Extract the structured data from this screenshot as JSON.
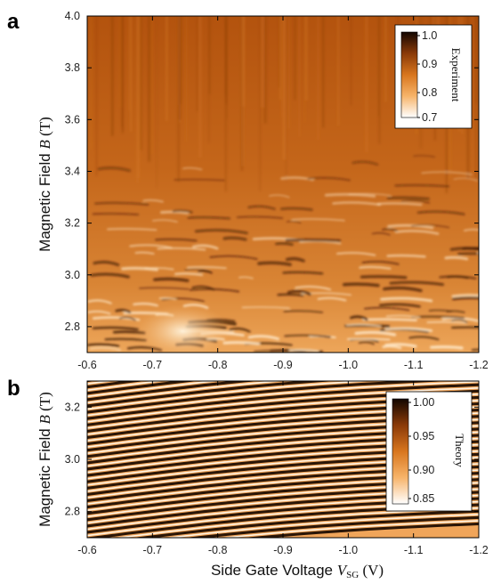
{
  "chart_data": [
    {
      "type": "heatmap",
      "panel_label": "a",
      "xlabel_parts": [
        "Side Gate Voltage ",
        "V",
        "SG",
        " (V)"
      ],
      "ylabel_parts": [
        "Magnetic Field ",
        "B",
        " (T)"
      ],
      "xlim": [
        -0.6,
        -1.2
      ],
      "ylim": [
        2.7,
        4.0
      ],
      "x_ticks": [
        "-0.6",
        "-0.7",
        "-0.8",
        "-0.9",
        "-1.0",
        "-1.1",
        "-1.2"
      ],
      "y_ticks": [
        "2.8",
        "3.0",
        "3.2",
        "3.4",
        "3.6",
        "3.8",
        "4.0"
      ],
      "colorbar": {
        "label": "Experiment",
        "range": [
          0.7,
          1.0
        ],
        "ticks": [
          "1.0",
          "0.9",
          "0.8",
          "0.7"
        ]
      }
    },
    {
      "type": "heatmap",
      "panel_label": "b",
      "xlabel_parts": [
        "Side Gate Voltage ",
        "V",
        "SG",
        " (V)"
      ],
      "ylabel_parts": [
        "Magnetic Field ",
        "B",
        " (T)"
      ],
      "xlim": [
        -0.6,
        -1.2
      ],
      "ylim": [
        2.7,
        3.3
      ],
      "x_ticks": [
        "-0.6",
        "-0.7",
        "-0.8",
        "-0.9",
        "-1.0",
        "-1.1",
        "-1.2"
      ],
      "y_ticks": [
        "2.8",
        "3.0",
        "3.2"
      ],
      "colorbar": {
        "label": "Theory",
        "range": [
          0.85,
          1.0
        ],
        "ticks": [
          "1.00",
          "0.95",
          "0.90",
          "0.85"
        ]
      }
    }
  ],
  "colors": {
    "dark": "#140800",
    "mid": "#c8640f",
    "light": "#ffffff"
  }
}
